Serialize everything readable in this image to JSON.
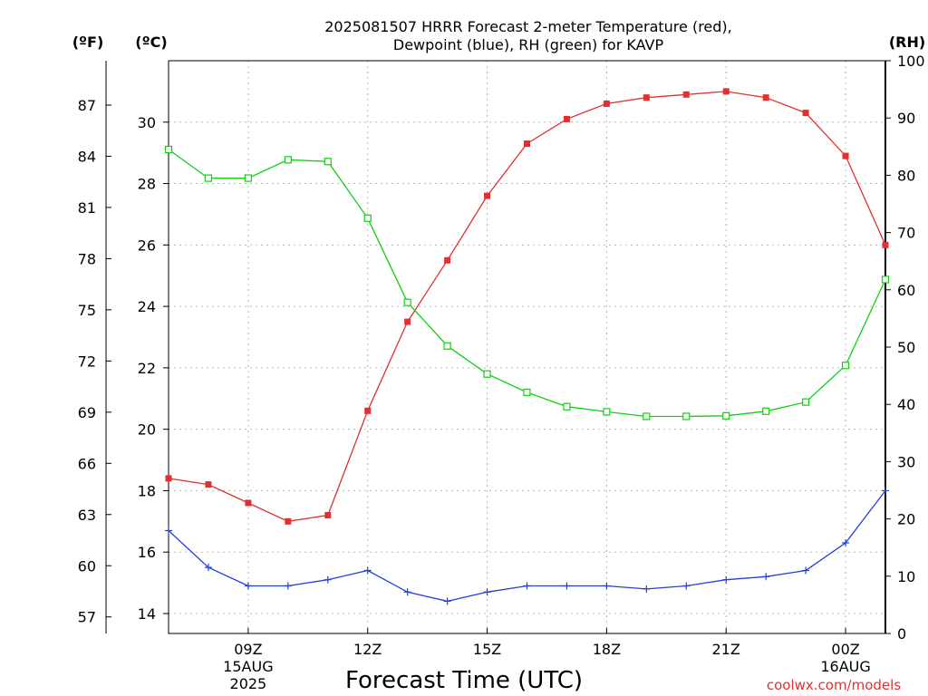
{
  "title_line1": "2025081507 HRRR Forecast 2-meter Temperature (red),",
  "title_line2": "Dewpoint (blue), RH (green) for KAVP",
  "unit_f": "(ºF)",
  "unit_c": "(ºC)",
  "unit_rh": "(RH)",
  "xlabel": "Forecast Time (UTC)",
  "credit": "coolwx.com/models",
  "colors": {
    "temperature": "#e03030",
    "dewpoint": "#2040e0",
    "rh": "#10d010"
  },
  "chart_data": {
    "type": "line",
    "title": "2025081507 HRRR Forecast 2-meter Temperature (red), Dewpoint (blue), RH (green) for KAVP",
    "xlabel": "Forecast Time (UTC)",
    "x": [
      "07Z",
      "08Z",
      "09Z",
      "10Z",
      "11Z",
      "12Z",
      "13Z",
      "14Z",
      "15Z",
      "16Z",
      "17Z",
      "18Z",
      "19Z",
      "20Z",
      "21Z",
      "22Z",
      "23Z",
      "00Z",
      "01Z"
    ],
    "x_ticks": [
      {
        "hour": 9,
        "labels": [
          "09Z",
          "15AUG",
          "2025"
        ]
      },
      {
        "hour": 12,
        "labels": [
          "12Z"
        ]
      },
      {
        "hour": 15,
        "labels": [
          "15Z"
        ]
      },
      {
        "hour": 18,
        "labels": [
          "18Z"
        ]
      },
      {
        "hour": 21,
        "labels": [
          "21Z"
        ]
      },
      {
        "hour": 24,
        "labels": [
          "00Z",
          "16AUG"
        ]
      }
    ],
    "xlim": [
      7,
      25
    ],
    "ylim_c": [
      13.35,
      32.0
    ],
    "ylim_rh": [
      0,
      100
    ],
    "yticks_c": [
      14,
      16,
      18,
      20,
      22,
      24,
      26,
      28,
      30
    ],
    "yticks_f": [
      57,
      60,
      63,
      66,
      69,
      72,
      75,
      78,
      81,
      84,
      87
    ],
    "yticks_rh": [
      0,
      10,
      20,
      30,
      40,
      50,
      60,
      70,
      80,
      90,
      100
    ],
    "grid": true,
    "series": [
      {
        "name": "Temperature",
        "axis": "C",
        "marker": "filled-square",
        "values": [
          18.4,
          18.2,
          17.6,
          17.0,
          17.2,
          20.6,
          23.5,
          25.5,
          27.6,
          29.3,
          30.1,
          30.6,
          30.8,
          30.9,
          31.0,
          30.8,
          30.3,
          28.9,
          26.0
        ]
      },
      {
        "name": "Dewpoint",
        "axis": "C",
        "marker": "plus",
        "values": [
          16.7,
          15.5,
          14.9,
          14.9,
          15.1,
          15.4,
          14.7,
          14.4,
          14.7,
          14.9,
          14.9,
          14.9,
          14.8,
          14.9,
          15.1,
          15.2,
          15.4,
          16.3,
          18.0
        ]
      },
      {
        "name": "RH",
        "axis": "RH",
        "marker": "open-square",
        "values": [
          84.5,
          79.5,
          79.5,
          82.7,
          82.4,
          72.5,
          57.8,
          50.2,
          45.3,
          42.1,
          39.6,
          38.7,
          37.9,
          37.9,
          38.0,
          38.8,
          40.4,
          46.8,
          61.8
        ]
      }
    ]
  }
}
